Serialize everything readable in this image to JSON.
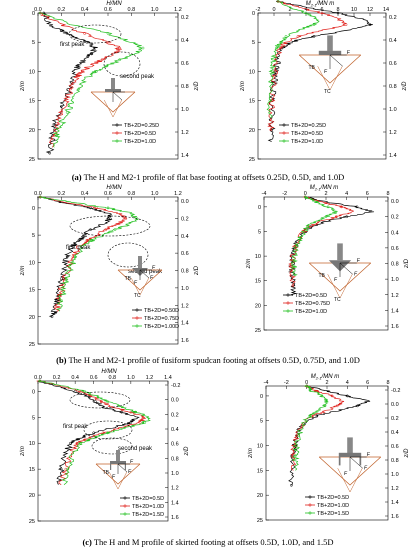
{
  "colors": {
    "black": "#000000",
    "red": "#e0201b",
    "green": "#22c020",
    "diagram": "#c0612a",
    "axis": "#000000",
    "ellipse": "#000000"
  },
  "chart_data": [
    {
      "id": "a-left",
      "type": "line",
      "xlabel": "H/MN",
      "ylabel_left": "z/m",
      "ylabel_right": "z/D",
      "xticks": [
        "0.0",
        "0.2",
        "0.4",
        "0.6",
        "0.8",
        "1.0",
        "1.2"
      ],
      "xlim": [
        0,
        1.2
      ],
      "yticks": [
        "0",
        "5",
        "10",
        "15",
        "20",
        "25"
      ],
      "ylim": [
        0,
        25
      ],
      "yticks_right": [
        "0.2",
        "0.4",
        "0.6",
        "0.8",
        "1.0",
        "1.2",
        "1.4"
      ],
      "annotations": [
        "first peak",
        "second peak"
      ],
      "legend": [
        "TB+2D=0.25D",
        "TB+2D=0.5D",
        "TB+2D=1.0D"
      ],
      "series": [
        {
          "name": "TB+2D=0.25D",
          "color": "black",
          "x": [
            0.05,
            0.1,
            0.2,
            0.3,
            0.42,
            0.5,
            0.46,
            0.4,
            0.34,
            0.32,
            0.3,
            0.25,
            0.2,
            0.16,
            0.14,
            0.12,
            0.1
          ],
          "y": [
            0,
            2,
            3,
            4,
            5,
            6,
            7,
            8,
            9,
            10,
            12,
            14,
            16,
            18,
            20,
            22,
            24
          ]
        },
        {
          "name": "TB+2D=0.5D",
          "color": "red",
          "x": [
            0.02,
            0.2,
            0.4,
            0.6,
            0.7,
            0.65,
            0.55,
            0.45,
            0.38,
            0.33,
            0.28,
            0.24,
            0.2,
            0.17,
            0.14,
            0.12
          ],
          "y": [
            0,
            2,
            3.5,
            5,
            6,
            7,
            8,
            9,
            10,
            11,
            13,
            15,
            17,
            19,
            21,
            23
          ]
        },
        {
          "name": "TB+2D=1.0D",
          "color": "green",
          "x": [
            0.02,
            0.3,
            0.6,
            0.8,
            0.9,
            0.84,
            0.7,
            0.6,
            0.5,
            0.42,
            0.35,
            0.3,
            0.25,
            0.2,
            0.16,
            0.14
          ],
          "y": [
            0,
            2,
            3.5,
            5,
            6,
            7,
            8,
            9,
            10,
            11,
            13,
            15,
            17,
            19,
            21,
            23
          ]
        }
      ]
    },
    {
      "id": "a-right",
      "type": "line",
      "xlabel": "M2-1/MN m",
      "xlabel_main": "M",
      "xlabel_sub": "2-1",
      "xlabel_rest": "/MN m",
      "ylabel_left": "z/m",
      "ylabel_right": "z/D",
      "xticks": [
        "-2",
        "0",
        "2",
        "4",
        "6",
        "8",
        "10",
        "12",
        "14"
      ],
      "xlim": [
        -2,
        14
      ],
      "yticks": [
        "0",
        "5",
        "10",
        "15",
        "20",
        "25"
      ],
      "ylim": [
        0,
        25
      ],
      "yticks_right": [
        "0.2",
        "0.4",
        "0.6",
        "0.8",
        "1.0",
        "1.2",
        "1.4"
      ],
      "legend": [
        "TB+2D=0.25D",
        "TB+2D=0.5D",
        "TB+2D=1.0D"
      ],
      "diagram_labels": [
        "F_H",
        "F_V",
        "TB",
        "TC"
      ],
      "series": [
        {
          "name": "TB+2D=0.25D",
          "color": "black",
          "x": [
            0.5,
            4,
            8,
            11,
            12,
            9,
            5,
            2,
            1,
            0.5,
            0.2,
            0,
            -0.2,
            -0.3,
            -0.3,
            -0.3
          ],
          "y": [
            -2,
            -1,
            0,
            1,
            2,
            3,
            4,
            5,
            6,
            8,
            10,
            12,
            15,
            18,
            20,
            22
          ]
        },
        {
          "name": "TB+2D=0.5D",
          "color": "red",
          "x": [
            0.5,
            3,
            6,
            8,
            9,
            6,
            3,
            1.5,
            0.8,
            0.4,
            0.1,
            -0.1,
            -0.3,
            -0.4,
            -0.4
          ],
          "y": [
            -2,
            -1,
            0,
            1,
            2,
            3,
            4,
            5,
            6,
            8,
            10,
            12,
            15,
            18,
            20
          ]
        },
        {
          "name": "TB+2D=1.0D",
          "color": "green",
          "x": [
            0.5,
            2,
            4,
            5.5,
            5,
            3,
            1.5,
            0.8,
            0.3,
            0,
            -0.2,
            -0.4,
            -0.5,
            -0.5
          ],
          "y": [
            -2,
            -1,
            0,
            1,
            2,
            3,
            4,
            5,
            6,
            8,
            10,
            12,
            15,
            18
          ]
        }
      ]
    },
    {
      "id": "b-left",
      "type": "line",
      "xlabel": "H/MN",
      "ylabel_left": "z/m",
      "ylabel_right": "z/D",
      "xticks": [
        "0.0",
        "0.2",
        "0.4",
        "0.6",
        "0.8",
        "1.0",
        "1.2"
      ],
      "xlim": [
        0,
        1.2
      ],
      "yticks": [
        "0",
        "5",
        "10",
        "15",
        "20",
        "25"
      ],
      "ylim": [
        -2,
        25
      ],
      "yticks_right": [
        "0.0",
        "0.2",
        "0.4",
        "0.6",
        "0.8",
        "1.0",
        "1.2",
        "1.4",
        "1.6"
      ],
      "annotations": [
        "first peak",
        "second peak"
      ],
      "legend": [
        "TB+2D=0.50D",
        "TB+2D=0.75D",
        "TB+2D=1.00D"
      ],
      "diagram_labels": [
        "F_H",
        "F_V",
        "F",
        "TB",
        "TC"
      ],
      "series": [
        {
          "name": "TB+2D=0.50D",
          "color": "black",
          "x": [
            0.02,
            0.2,
            0.45,
            0.6,
            0.62,
            0.55,
            0.45,
            0.4,
            0.35,
            0.3,
            0.25,
            0.22,
            0.2,
            0.18,
            0.16,
            0.14,
            0.12
          ],
          "y": [
            -2,
            -1,
            0,
            1,
            2,
            3,
            4,
            5,
            6,
            7,
            9,
            11,
            13,
            15,
            17,
            19,
            20
          ]
        },
        {
          "name": "TB+2D=0.75D",
          "color": "red",
          "x": [
            0.02,
            0.25,
            0.5,
            0.7,
            0.75,
            0.68,
            0.58,
            0.5,
            0.42,
            0.36,
            0.3,
            0.26,
            0.22,
            0.2,
            0.18,
            0.16
          ],
          "y": [
            -2,
            -1,
            0,
            1,
            2,
            3,
            4,
            5,
            6,
            7,
            9,
            11,
            13,
            15,
            17,
            19
          ]
        },
        {
          "name": "TB+2D=1.00D",
          "color": "green",
          "x": [
            0.02,
            0.3,
            0.6,
            0.8,
            0.85,
            0.78,
            0.66,
            0.56,
            0.46,
            0.38,
            0.32,
            0.28,
            0.24,
            0.22,
            0.2,
            0.18
          ],
          "y": [
            -2,
            -1,
            0,
            1,
            2,
            3,
            4,
            5,
            6,
            7,
            9,
            11,
            13,
            15,
            17,
            19
          ]
        }
      ]
    },
    {
      "id": "b-right",
      "type": "line",
      "xlabel": "M2-1/MN m",
      "xlabel_main": "M",
      "xlabel_sub": "2-1",
      "xlabel_rest": "/MN m",
      "ylabel_left": "z/m",
      "ylabel_right": "z/D",
      "xticks": [
        "-4",
        "-2",
        "0",
        "2",
        "4",
        "6",
        "8"
      ],
      "xlim": [
        -4,
        8
      ],
      "yticks": [
        "0",
        "5",
        "10",
        "15",
        "20",
        "25"
      ],
      "ylim": [
        -2,
        25
      ],
      "yticks_right": [
        "0.0",
        "0.2",
        "0.4",
        "0.6",
        "0.8",
        "1.0",
        "1.2",
        "1.4",
        "1.6"
      ],
      "legend": [
        "TB+2D=0.5D",
        "TB+2D=0.75D",
        "TB+2D=1.0D"
      ],
      "diagram_labels": [
        "F_H",
        "F_V",
        "F",
        "TB",
        "TC"
      ],
      "series": [
        {
          "name": "TB+2D=0.5D",
          "color": "black",
          "x": [
            0,
            2,
            5,
            6.5,
            4,
            2,
            0.5,
            -0.5,
            -1,
            -1.2,
            -1.3,
            -1.3,
            -1.2,
            -1.2
          ],
          "y": [
            -2,
            -1,
            0,
            1,
            2,
            3,
            4,
            6,
            8,
            10,
            12,
            14,
            16,
            18
          ]
        },
        {
          "name": "TB+2D=0.75D",
          "color": "red",
          "x": [
            0,
            1.5,
            3.5,
            4.8,
            3,
            1.5,
            0.3,
            -0.5,
            -1,
            -1.2,
            -1.3,
            -1.3,
            -1.2
          ],
          "y": [
            -2,
            -1,
            0,
            1,
            2,
            3,
            4,
            6,
            8,
            10,
            12,
            14,
            16
          ]
        },
        {
          "name": "TB+2D=1.0D",
          "color": "green",
          "x": [
            0,
            1,
            2.2,
            3,
            2,
            1,
            0.2,
            -0.4,
            -0.8,
            -1,
            -1.1,
            -1.1
          ],
          "y": [
            -2,
            -1,
            0,
            1,
            2,
            3,
            4,
            6,
            8,
            10,
            12,
            14
          ]
        }
      ]
    },
    {
      "id": "c-left",
      "type": "line",
      "xlabel": "H/MN",
      "ylabel_left": "z/m",
      "ylabel_right": "z/D",
      "xticks": [
        "0.0",
        "0.2",
        "0.4",
        "0.6",
        "0.8",
        "1.0",
        "1.2",
        "1.4"
      ],
      "xlim": [
        0,
        1.4
      ],
      "yticks": [
        "0",
        "5",
        "10",
        "15",
        "20",
        "25"
      ],
      "ylim": [
        -2,
        25
      ],
      "yticks_right": [
        "-0.2",
        "0.0",
        "0.2",
        "0.4",
        "0.6",
        "0.8",
        "1.0",
        "1.2",
        "1.4",
        "1.6"
      ],
      "annotations": [
        "first peak",
        "second peak"
      ],
      "legend": [
        "TB+2D=0.5D",
        "TB+2D=1.0D",
        "TB+2D=1.5D"
      ],
      "diagram_labels": [
        "F_H",
        "F_V",
        "F",
        "TB"
      ],
      "series": [
        {
          "name": "TB+2D=0.5D",
          "color": "black",
          "x": [
            0.02,
            0.2,
            0.4,
            0.55,
            0.62,
            0.7,
            0.9,
            1.05,
            1.0,
            0.8,
            0.6,
            0.45,
            0.35,
            0.3,
            0.25,
            0.22
          ],
          "y": [
            -2,
            -1,
            0,
            1,
            2,
            3,
            4,
            5,
            6,
            7,
            8,
            9,
            10,
            12,
            15,
            18
          ]
        },
        {
          "name": "TB+2D=1.0D",
          "color": "red",
          "x": [
            0.02,
            0.25,
            0.45,
            0.6,
            0.68,
            0.8,
            1.0,
            1.15,
            1.1,
            0.9,
            0.7,
            0.55,
            0.42,
            0.35,
            0.3,
            0.25
          ],
          "y": [
            -2,
            -1,
            0,
            1,
            2,
            3,
            4,
            5,
            6,
            7,
            8,
            9,
            10,
            12,
            15,
            18
          ]
        },
        {
          "name": "TB+2D=1.5D",
          "color": "green",
          "x": [
            0.02,
            0.3,
            0.5,
            0.65,
            0.75,
            0.9,
            1.05,
            1.2,
            1.15,
            0.95,
            0.75,
            0.6,
            0.46,
            0.38,
            0.32,
            0.28
          ],
          "y": [
            -2,
            -1,
            0,
            1,
            2,
            3,
            4,
            5,
            6,
            7,
            8,
            9,
            10,
            12,
            15,
            18
          ]
        }
      ]
    },
    {
      "id": "c-right",
      "type": "line",
      "xlabel": "M2-1/MN m",
      "xlabel_main": "M",
      "xlabel_sub": "2-1",
      "xlabel_rest": "/MN m",
      "ylabel_left": "z/m",
      "ylabel_right": "z/D",
      "xticks": [
        "-4",
        "-2",
        "0",
        "2",
        "4",
        "6",
        "8"
      ],
      "xlim": [
        -4,
        8
      ],
      "yticks": [
        "0",
        "5",
        "10",
        "15",
        "20",
        "25"
      ],
      "ylim": [
        -2,
        25
      ],
      "yticks_right": [
        "-0.2",
        "0.0",
        "0.2",
        "0.4",
        "0.6",
        "0.8",
        "1.0",
        "1.2",
        "1.4",
        "1.6"
      ],
      "legend": [
        "TB+2D=0.5D",
        "TB+2D=1.0D",
        "TB+2D=1.5D"
      ],
      "diagram_labels": [
        "F_H",
        "F_V",
        "F"
      ],
      "series": [
        {
          "name": "TB+2D=0.5D",
          "color": "black",
          "x": [
            0,
            2,
            4,
            6,
            5,
            3,
            1,
            -0.5,
            -1,
            -1.2,
            -1.4,
            -1.5,
            -1.5
          ],
          "y": [
            -2,
            -1,
            0,
            1,
            2,
            3,
            4,
            6,
            8,
            10,
            12,
            15,
            18
          ]
        },
        {
          "name": "TB+2D=1.0D",
          "color": "red",
          "x": [
            0,
            1,
            2.5,
            3.5,
            3,
            2,
            0.5,
            -0.5,
            -1,
            -1.2,
            -1.3,
            -1.3
          ],
          "y": [
            -2,
            -1,
            0,
            1,
            2,
            3,
            4,
            6,
            8,
            10,
            12,
            15
          ]
        },
        {
          "name": "TB+2D=1.5D",
          "color": "green",
          "x": [
            0,
            0.5,
            1.5,
            2,
            1.8,
            1.2,
            0.3,
            -0.4,
            -0.8,
            -1,
            -1.1,
            -1.1
          ],
          "y": [
            -2,
            -1,
            0,
            1,
            2,
            3,
            4,
            6,
            8,
            10,
            12,
            15
          ]
        }
      ]
    }
  ],
  "captions": {
    "a": {
      "label": "(a)",
      "text": " The H and M2-1 profile of flat base footing at offsets 0.25D, 0.5D, and 1.0D"
    },
    "b": {
      "label": "(b)",
      "text": " The H and M2-1 profile of fusiform spudcan footing at offsets 0.5D, 0.75D, and 1.0D"
    },
    "c": {
      "label": "(c)",
      "text": " The H and M profile of skirted footing at offsets 0.5D, 1.0D, and 1.5D"
    }
  }
}
